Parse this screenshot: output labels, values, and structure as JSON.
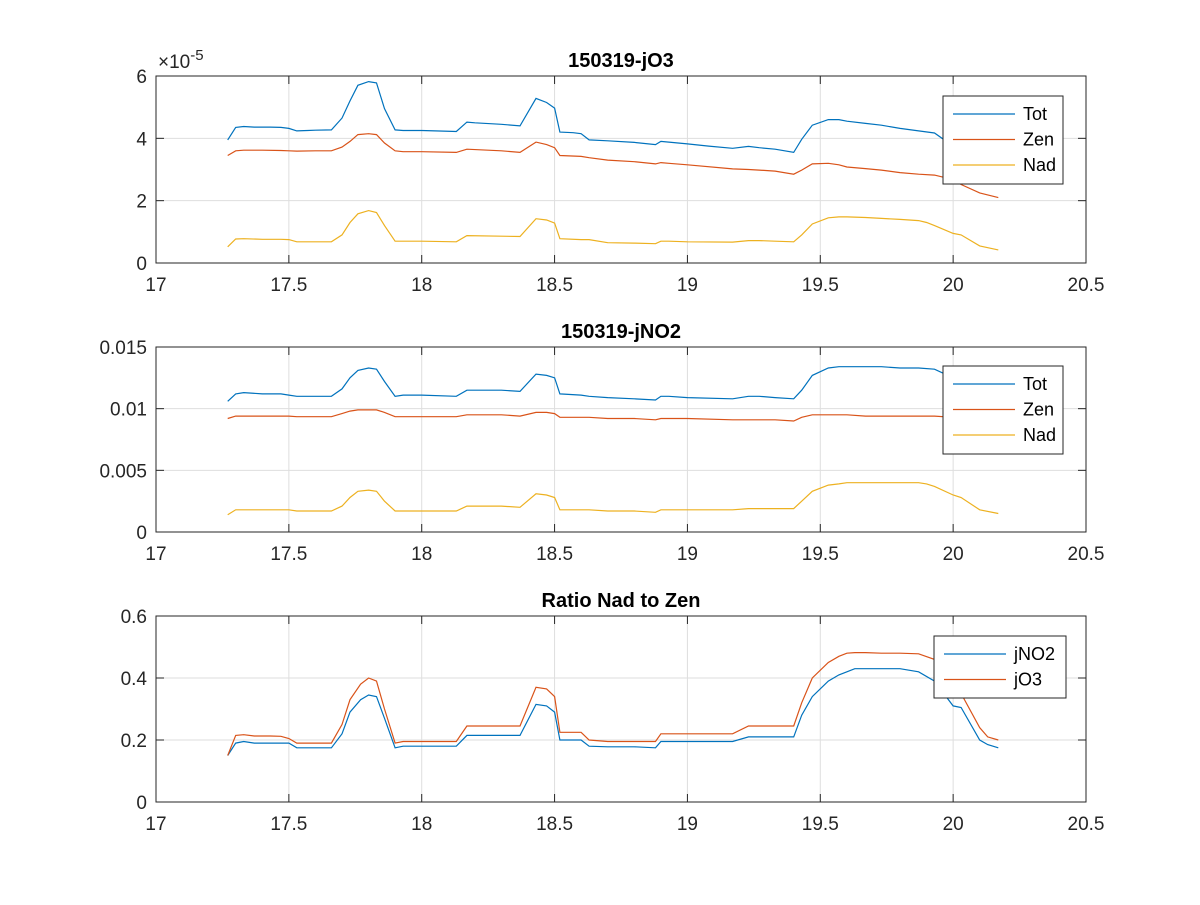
{
  "chart_data": [
    {
      "type": "line",
      "title": "150319-jO3",
      "xlabel": "",
      "ylabel": "",
      "xlim": [
        17,
        20.5
      ],
      "ylim": [
        0,
        6e-05
      ],
      "x_ticks": [
        "17",
        "17.5",
        "18",
        "18.5",
        "19",
        "19.5",
        "20",
        "20.5"
      ],
      "y_ticks": [
        "0",
        "2",
        "4",
        "6"
      ],
      "y_exponent": "-5",
      "grid": true,
      "legend": "top-right",
      "series": [
        {
          "name": "Tot",
          "color": "#0072BD",
          "x": [
            17.27,
            17.3,
            17.33,
            17.37,
            17.43,
            17.47,
            17.5,
            17.53,
            17.57,
            17.6,
            17.66,
            17.7,
            17.73,
            17.76,
            17.8,
            17.83,
            17.86,
            17.9,
            17.93,
            18.0,
            18.05,
            18.13,
            18.17,
            18.2,
            18.3,
            18.37,
            18.43,
            18.47,
            18.5,
            18.52,
            18.57,
            18.6,
            18.63,
            18.7,
            18.8,
            18.88,
            18.9,
            18.93,
            19.0,
            19.08,
            19.17,
            19.23,
            19.27,
            19.33,
            19.4,
            19.43,
            19.47,
            19.53,
            19.57,
            19.6,
            19.67,
            19.73,
            19.8,
            19.87,
            19.93,
            20.0,
            20.03,
            20.1,
            20.17
          ],
          "values": [
            3.95e-05,
            4.35e-05,
            4.38e-05,
            4.36e-05,
            4.36e-05,
            4.35e-05,
            4.32e-05,
            4.24e-05,
            4.25e-05,
            4.26e-05,
            4.27e-05,
            4.65e-05,
            5.2e-05,
            5.7e-05,
            5.82e-05,
            5.78e-05,
            4.95e-05,
            4.27e-05,
            4.25e-05,
            4.25e-05,
            4.24e-05,
            4.22e-05,
            4.52e-05,
            4.5e-05,
            4.45e-05,
            4.4e-05,
            5.28e-05,
            5.15e-05,
            4.97e-05,
            4.2e-05,
            4.18e-05,
            4.15e-05,
            3.95e-05,
            3.92e-05,
            3.87e-05,
            3.8e-05,
            3.9e-05,
            3.88e-05,
            3.82e-05,
            3.75e-05,
            3.68e-05,
            3.74e-05,
            3.7e-05,
            3.65e-05,
            3.55e-05,
            3.97e-05,
            4.42e-05,
            4.6e-05,
            4.6e-05,
            4.55e-05,
            4.48e-05,
            4.42e-05,
            4.32e-05,
            4.24e-05,
            4.17e-05,
            3.75e-05,
            3.3e-05,
            2.9e-05,
            2.55e-05
          ]
        },
        {
          "name": "Zen",
          "color": "#D95319",
          "x": [
            17.27,
            17.3,
            17.33,
            17.4,
            17.47,
            17.5,
            17.53,
            17.6,
            17.66,
            17.7,
            17.73,
            17.76,
            17.8,
            17.83,
            17.86,
            17.9,
            17.93,
            18.0,
            18.13,
            18.17,
            18.3,
            18.37,
            18.43,
            18.47,
            18.5,
            18.52,
            18.6,
            18.63,
            18.7,
            18.8,
            18.88,
            18.9,
            18.93,
            19.0,
            19.17,
            19.23,
            19.27,
            19.33,
            19.4,
            19.43,
            19.47,
            19.53,
            19.57,
            19.6,
            19.67,
            19.73,
            19.8,
            19.87,
            19.93,
            20.0,
            20.03,
            20.1,
            20.17
          ],
          "values": [
            3.45e-05,
            3.6e-05,
            3.62e-05,
            3.62e-05,
            3.61e-05,
            3.6e-05,
            3.59e-05,
            3.6e-05,
            3.6e-05,
            3.72e-05,
            3.9e-05,
            4.12e-05,
            4.15e-05,
            4.12e-05,
            3.85e-05,
            3.6e-05,
            3.57e-05,
            3.57e-05,
            3.55e-05,
            3.65e-05,
            3.6e-05,
            3.55e-05,
            3.88e-05,
            3.8e-05,
            3.7e-05,
            3.45e-05,
            3.42e-05,
            3.38e-05,
            3.3e-05,
            3.25e-05,
            3.18e-05,
            3.22e-05,
            3.2e-05,
            3.15e-05,
            3.02e-05,
            3e-05,
            2.98e-05,
            2.95e-05,
            2.85e-05,
            2.98e-05,
            3.18e-05,
            3.2e-05,
            3.15e-05,
            3.08e-05,
            3.03e-05,
            2.98e-05,
            2.9e-05,
            2.85e-05,
            2.82e-05,
            2.68e-05,
            2.52e-05,
            2.25e-05,
            2.1e-05
          ]
        },
        {
          "name": "Nad",
          "color": "#EDB120",
          "x": [
            17.27,
            17.3,
            17.33,
            17.4,
            17.47,
            17.5,
            17.53,
            17.6,
            17.66,
            17.7,
            17.73,
            17.76,
            17.8,
            17.83,
            17.86,
            17.9,
            17.93,
            18.0,
            18.13,
            18.17,
            18.3,
            18.37,
            18.43,
            18.47,
            18.5,
            18.52,
            18.6,
            18.63,
            18.7,
            18.8,
            18.88,
            18.9,
            18.93,
            19.0,
            19.17,
            19.23,
            19.27,
            19.33,
            19.4,
            19.43,
            19.47,
            19.53,
            19.57,
            19.6,
            19.67,
            19.73,
            19.8,
            19.87,
            19.9,
            19.93,
            20.0,
            20.03,
            20.1,
            20.17
          ],
          "values": [
            5.2e-06,
            7.7e-06,
            7.8e-06,
            7.6e-06,
            7.6e-06,
            7.5e-06,
            6.8e-06,
            6.8e-06,
            6.8e-06,
            9e-06,
            1.3e-05,
            1.58e-05,
            1.68e-05,
            1.62e-05,
            1.2e-05,
            7e-06,
            7e-06,
            7e-06,
            6.8e-06,
            8.8e-06,
            8.6e-06,
            8.5e-06,
            1.42e-05,
            1.38e-05,
            1.28e-05,
            7.8e-06,
            7.5e-06,
            7.5e-06,
            6.5e-06,
            6.4e-06,
            6.2e-06,
            7e-06,
            7e-06,
            6.8e-06,
            6.7e-06,
            7.2e-06,
            7.2e-06,
            7e-06,
            6.8e-06,
            9e-06,
            1.25e-05,
            1.45e-05,
            1.48e-05,
            1.48e-05,
            1.46e-05,
            1.43e-05,
            1.4e-05,
            1.36e-05,
            1.3e-05,
            1.2e-05,
            9.5e-06,
            9e-06,
            5.5e-06,
            4.2e-06
          ]
        }
      ]
    },
    {
      "type": "line",
      "title": "150319-jNO2",
      "xlabel": "",
      "ylabel": "",
      "xlim": [
        17,
        20.5
      ],
      "ylim": [
        0,
        0.015
      ],
      "x_ticks": [
        "17",
        "17.5",
        "18",
        "18.5",
        "19",
        "19.5",
        "20",
        "20.5"
      ],
      "y_ticks": [
        "0",
        "0.005",
        "0.01",
        "0.015"
      ],
      "grid": true,
      "legend": "top-right",
      "series": [
        {
          "name": "Tot",
          "color": "#0072BD",
          "x": [
            17.27,
            17.3,
            17.33,
            17.4,
            17.47,
            17.5,
            17.53,
            17.6,
            17.66,
            17.7,
            17.73,
            17.76,
            17.8,
            17.83,
            17.86,
            17.9,
            17.93,
            18.0,
            18.13,
            18.17,
            18.3,
            18.37,
            18.43,
            18.47,
            18.5,
            18.52,
            18.6,
            18.63,
            18.7,
            18.8,
            18.88,
            18.9,
            18.93,
            19.0,
            19.17,
            19.23,
            19.27,
            19.33,
            19.4,
            19.43,
            19.47,
            19.53,
            19.57,
            19.6,
            19.67,
            19.73,
            19.8,
            19.87,
            19.93,
            20.0,
            20.03,
            20.1,
            20.17
          ],
          "values": [
            0.0106,
            0.0112,
            0.0113,
            0.0112,
            0.0112,
            0.0111,
            0.011,
            0.011,
            0.011,
            0.0116,
            0.0125,
            0.0131,
            0.0133,
            0.0132,
            0.0122,
            0.011,
            0.0111,
            0.0111,
            0.011,
            0.0115,
            0.0115,
            0.0114,
            0.0128,
            0.0127,
            0.0125,
            0.0112,
            0.0111,
            0.011,
            0.0109,
            0.0108,
            0.0107,
            0.011,
            0.011,
            0.0109,
            0.0108,
            0.011,
            0.011,
            0.0109,
            0.0108,
            0.0115,
            0.0127,
            0.0133,
            0.0134,
            0.0134,
            0.0134,
            0.0134,
            0.0133,
            0.0133,
            0.0132,
            0.0125,
            0.012,
            0.0115,
            0.0112
          ]
        },
        {
          "name": "Zen",
          "color": "#D95319",
          "x": [
            17.27,
            17.3,
            17.33,
            17.4,
            17.47,
            17.5,
            17.53,
            17.6,
            17.66,
            17.7,
            17.73,
            17.76,
            17.8,
            17.83,
            17.86,
            17.9,
            17.93,
            18.0,
            18.13,
            18.17,
            18.3,
            18.37,
            18.43,
            18.47,
            18.5,
            18.52,
            18.6,
            18.63,
            18.7,
            18.8,
            18.88,
            18.9,
            18.93,
            19.0,
            19.17,
            19.23,
            19.27,
            19.33,
            19.4,
            19.43,
            19.47,
            19.53,
            19.57,
            19.6,
            19.67,
            19.73,
            19.8,
            19.87,
            19.93,
            20.0,
            20.03,
            20.1,
            20.17
          ],
          "values": [
            0.0092,
            0.0094,
            0.0094,
            0.0094,
            0.0094,
            0.0094,
            0.00935,
            0.00935,
            0.00935,
            0.0096,
            0.0098,
            0.0099,
            0.0099,
            0.0099,
            0.0097,
            0.00935,
            0.00935,
            0.00935,
            0.00935,
            0.0095,
            0.0095,
            0.0094,
            0.0097,
            0.0097,
            0.0096,
            0.0093,
            0.0093,
            0.0093,
            0.0092,
            0.0092,
            0.0091,
            0.0092,
            0.0092,
            0.0092,
            0.0091,
            0.0091,
            0.0091,
            0.0091,
            0.009,
            0.0093,
            0.0095,
            0.0095,
            0.0095,
            0.0095,
            0.0094,
            0.0094,
            0.0094,
            0.0094,
            0.0094,
            0.0093,
            0.0093,
            0.0092,
            0.0091
          ]
        },
        {
          "name": "Nad",
          "color": "#EDB120",
          "x": [
            17.27,
            17.3,
            17.33,
            17.4,
            17.47,
            17.5,
            17.53,
            17.6,
            17.66,
            17.7,
            17.73,
            17.76,
            17.8,
            17.83,
            17.86,
            17.9,
            17.93,
            18.0,
            18.13,
            18.17,
            18.3,
            18.37,
            18.43,
            18.47,
            18.5,
            18.52,
            18.6,
            18.63,
            18.7,
            18.8,
            18.88,
            18.9,
            18.93,
            19.0,
            19.17,
            19.23,
            19.27,
            19.33,
            19.4,
            19.43,
            19.47,
            19.53,
            19.57,
            19.6,
            19.67,
            19.73,
            19.8,
            19.87,
            19.9,
            19.93,
            20.0,
            20.03,
            20.1,
            20.17
          ],
          "values": [
            0.0014,
            0.0018,
            0.0018,
            0.0018,
            0.0018,
            0.0018,
            0.0017,
            0.0017,
            0.0017,
            0.0021,
            0.0028,
            0.0033,
            0.0034,
            0.0033,
            0.0025,
            0.0017,
            0.0017,
            0.0017,
            0.0017,
            0.0021,
            0.0021,
            0.002,
            0.0031,
            0.003,
            0.0028,
            0.0018,
            0.0018,
            0.0018,
            0.0017,
            0.0017,
            0.0016,
            0.0018,
            0.0018,
            0.0018,
            0.0018,
            0.0019,
            0.0019,
            0.0019,
            0.0019,
            0.0025,
            0.0033,
            0.0038,
            0.0039,
            0.004,
            0.004,
            0.004,
            0.004,
            0.004,
            0.0039,
            0.0037,
            0.003,
            0.0028,
            0.0018,
            0.0015
          ]
        }
      ]
    },
    {
      "type": "line",
      "title": "Ratio Nad to Zen",
      "xlabel": "",
      "ylabel": "",
      "xlim": [
        17,
        20.5
      ],
      "ylim": [
        0,
        0.6
      ],
      "x_ticks": [
        "17",
        "17.5",
        "18",
        "18.5",
        "19",
        "19.5",
        "20",
        "20.5"
      ],
      "y_ticks": [
        "0",
        "0.2",
        "0.4",
        "0.6"
      ],
      "grid": true,
      "legend": "top-right",
      "series": [
        {
          "name": "jNO2",
          "color": "#0072BD",
          "x": [
            17.27,
            17.3,
            17.33,
            17.37,
            17.43,
            17.47,
            17.5,
            17.53,
            17.6,
            17.66,
            17.7,
            17.73,
            17.77,
            17.8,
            17.83,
            17.86,
            17.9,
            17.93,
            18.0,
            18.13,
            18.17,
            18.3,
            18.37,
            18.43,
            18.47,
            18.5,
            18.52,
            18.6,
            18.63,
            18.7,
            18.8,
            18.88,
            18.9,
            18.93,
            19.0,
            19.17,
            19.23,
            19.27,
            19.33,
            19.4,
            19.43,
            19.47,
            19.53,
            19.57,
            19.6,
            19.63,
            19.67,
            19.73,
            19.8,
            19.87,
            19.93,
            20.0,
            20.03,
            20.1,
            20.13,
            20.17
          ],
          "values": [
            0.15,
            0.19,
            0.195,
            0.19,
            0.19,
            0.19,
            0.19,
            0.175,
            0.175,
            0.175,
            0.22,
            0.29,
            0.33,
            0.345,
            0.34,
            0.27,
            0.175,
            0.18,
            0.18,
            0.18,
            0.215,
            0.215,
            0.215,
            0.315,
            0.31,
            0.29,
            0.2,
            0.2,
            0.18,
            0.178,
            0.178,
            0.175,
            0.195,
            0.195,
            0.195,
            0.195,
            0.21,
            0.21,
            0.21,
            0.21,
            0.28,
            0.34,
            0.39,
            0.41,
            0.42,
            0.43,
            0.43,
            0.43,
            0.43,
            0.42,
            0.39,
            0.31,
            0.305,
            0.2,
            0.185,
            0.175
          ]
        },
        {
          "name": "jO3",
          "color": "#D95319",
          "x": [
            17.27,
            17.3,
            17.33,
            17.37,
            17.43,
            17.47,
            17.5,
            17.53,
            17.6,
            17.66,
            17.7,
            17.73,
            17.77,
            17.8,
            17.83,
            17.86,
            17.9,
            17.93,
            18.0,
            18.13,
            18.17,
            18.3,
            18.37,
            18.43,
            18.47,
            18.5,
            18.52,
            18.6,
            18.63,
            18.7,
            18.8,
            18.88,
            18.9,
            18.93,
            19.0,
            19.17,
            19.23,
            19.27,
            19.33,
            19.4,
            19.43,
            19.47,
            19.53,
            19.57,
            19.6,
            19.63,
            19.67,
            19.73,
            19.8,
            19.87,
            19.93,
            20.0,
            20.03,
            20.1,
            20.13,
            20.17
          ],
          "values": [
            0.15,
            0.215,
            0.217,
            0.213,
            0.213,
            0.212,
            0.205,
            0.19,
            0.19,
            0.19,
            0.25,
            0.33,
            0.38,
            0.4,
            0.39,
            0.3,
            0.19,
            0.195,
            0.195,
            0.195,
            0.245,
            0.245,
            0.245,
            0.37,
            0.365,
            0.34,
            0.225,
            0.225,
            0.2,
            0.195,
            0.195,
            0.195,
            0.22,
            0.22,
            0.22,
            0.22,
            0.245,
            0.245,
            0.245,
            0.245,
            0.32,
            0.4,
            0.45,
            0.47,
            0.48,
            0.482,
            0.482,
            0.48,
            0.48,
            0.478,
            0.46,
            0.4,
            0.35,
            0.24,
            0.21,
            0.2
          ]
        }
      ]
    }
  ]
}
